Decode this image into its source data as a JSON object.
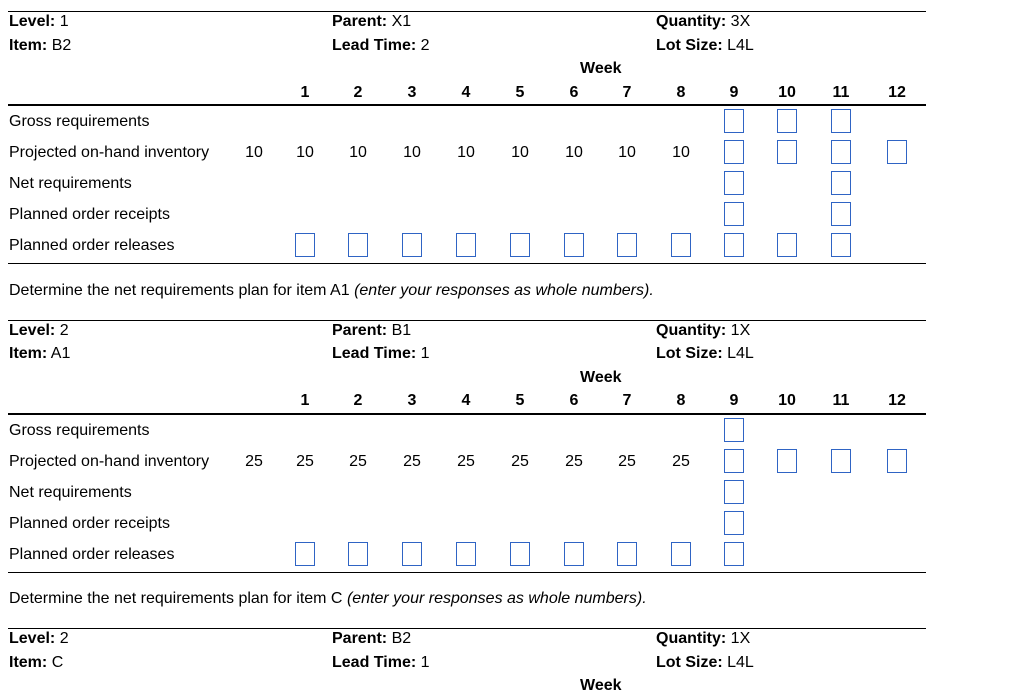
{
  "labels": {
    "level": "Level:",
    "item": "Item:",
    "parent": "Parent:",
    "lead_time": "Lead Time:",
    "quantity": "Quantity:",
    "lot_size": "Lot Size:",
    "week": "Week"
  },
  "weeks": [
    "1",
    "2",
    "3",
    "4",
    "5",
    "6",
    "7",
    "8",
    "9",
    "10",
    "11",
    "12"
  ],
  "row_labels": {
    "gross": "Gross requirements",
    "projected": "Projected on-hand inventory",
    "net": "Net requirements",
    "receipts": "Planned order receipts",
    "releases": "Planned order releases"
  },
  "instructions": [
    {
      "text": "Determine the net requirements plan for item A1 ",
      "note": "(enter your responses as whole numbers)."
    },
    {
      "text": "Determine the net requirements plan for item C ",
      "note": "(enter your responses as whole numbers)."
    }
  ],
  "tables": [
    {
      "level": "1",
      "item": "B2",
      "parent": "X1",
      "lead_time": "2",
      "quantity": "3X",
      "lot_size": "L4L",
      "initial_inventory": "10",
      "projected": [
        "10",
        "10",
        "10",
        "10",
        "10",
        "10",
        "10",
        "10"
      ]
    },
    {
      "level": "2",
      "item": "A1",
      "parent": "B1",
      "lead_time": "1",
      "quantity": "1X",
      "lot_size": "L4L",
      "initial_inventory": "25",
      "projected": [
        "25",
        "25",
        "25",
        "25",
        "25",
        "25",
        "25",
        "25"
      ]
    },
    {
      "level": "2",
      "item": "C",
      "parent": "B2",
      "lead_time": "1",
      "quantity": "1X",
      "lot_size": "L4L"
    }
  ]
}
